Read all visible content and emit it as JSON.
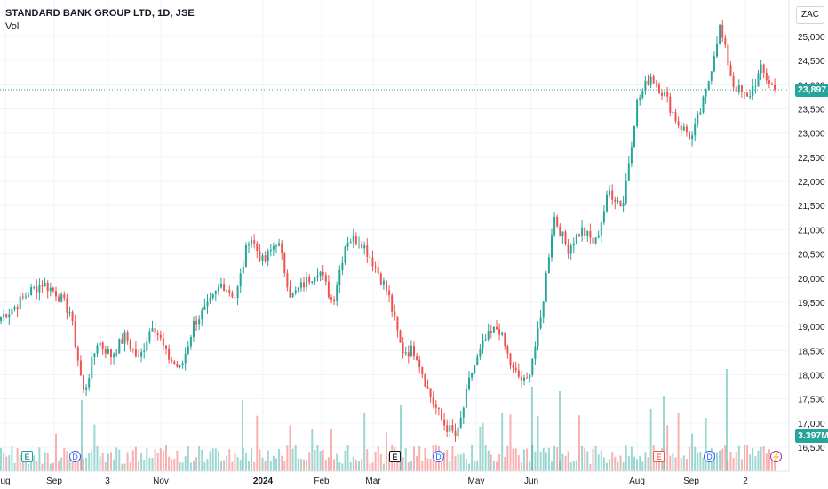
{
  "header": {
    "title": "STANDARD BANK GROUP LTD, 1D, JSE",
    "volume_label": "Vol"
  },
  "scale_label": "ZAC",
  "last_price": {
    "label": "23,897",
    "value": 23897,
    "color": "#26a69a"
  },
  "last_volume": {
    "label": "3.397M",
    "color": "#26a69a"
  },
  "colors": {
    "up": "#26a69a",
    "down": "#ef5350",
    "grid": "#f0f3fa",
    "axis_text": "#131722"
  },
  "chart_data": {
    "type": "candlestick",
    "title": "STANDARD BANK GROUP LTD, 1D, JSE",
    "ylabel": "ZAC",
    "ylim": [
      16000,
      25300
    ],
    "y_ticks": [
      "16,500",
      "17,000",
      "17,500",
      "18,000",
      "18,500",
      "19,000",
      "19,500",
      "20,000",
      "20,500",
      "21,000",
      "21,500",
      "22,000",
      "22,500",
      "23,000",
      "23,500",
      "24,000",
      "24,500",
      "25,000"
    ],
    "x_ticks": [
      "ug",
      "Sep",
      "3",
      "Nov",
      "2024",
      "Feb",
      "Mar",
      "May",
      "Jun",
      "Aug",
      "Sep",
      "2"
    ],
    "series": [
      {
        "type": "close-path",
        "points": [
          [
            "Aug",
            19200
          ],
          [
            "Aug",
            19400
          ],
          [
            "Aug",
            19700
          ],
          [
            "Aug",
            19900
          ],
          [
            "Sep",
            19700
          ],
          [
            "Sep",
            19300
          ],
          [
            "Sep",
            17600
          ],
          [
            "Sep",
            18700
          ],
          [
            "Oct",
            18400
          ],
          [
            "Oct",
            18800
          ],
          [
            "Oct",
            18300
          ],
          [
            "Oct",
            19100
          ],
          [
            "Nov",
            18400
          ],
          [
            "Nov",
            18100
          ],
          [
            "Nov",
            19100
          ],
          [
            "Nov",
            19400
          ],
          [
            "Dec",
            19900
          ],
          [
            "Dec",
            19600
          ],
          [
            "Dec",
            20900
          ],
          [
            "Dec",
            20300
          ],
          [
            "Jan",
            20800
          ],
          [
            "Jan",
            19600
          ],
          [
            "Jan",
            19900
          ],
          [
            "Feb",
            20200
          ],
          [
            "Feb",
            19500
          ],
          [
            "Feb",
            20800
          ],
          [
            "Mar",
            20800
          ],
          [
            "Mar",
            20300
          ],
          [
            "Mar",
            19700
          ],
          [
            "Mar",
            18500
          ],
          [
            "Apr",
            18500
          ],
          [
            "Apr",
            17600
          ],
          [
            "Apr",
            17000
          ],
          [
            "Apr",
            16700
          ],
          [
            "May",
            18000
          ],
          [
            "May",
            18700
          ],
          [
            "May",
            19000
          ],
          [
            "May",
            18100
          ],
          [
            "Jun",
            17800
          ],
          [
            "Jun",
            19000
          ],
          [
            "Jun",
            21300
          ],
          [
            "Jun",
            20600
          ],
          [
            "Jul",
            21000
          ],
          [
            "Jul",
            20700
          ],
          [
            "Jul",
            21800
          ],
          [
            "Jul",
            21500
          ],
          [
            "Aug",
            23600
          ],
          [
            "Aug",
            24200
          ],
          [
            "Aug",
            23800
          ],
          [
            "Sep",
            23200
          ],
          [
            "Sep",
            22900
          ],
          [
            "Sep",
            23800
          ],
          [
            "Sep",
            25200
          ],
          [
            "Oct",
            24000
          ],
          [
            "Oct",
            23700
          ],
          [
            "Oct",
            24300
          ],
          [
            "Oct",
            23897
          ]
        ]
      }
    ],
    "volume": {
      "last_value_millions": 3.397,
      "spikes_millions": [
        11.6,
        5.1,
        9.0
      ]
    },
    "events": [
      {
        "type": "earnings",
        "label": "E",
        "month": "Aug"
      },
      {
        "type": "dividend",
        "label": "D",
        "month": "Sep"
      },
      {
        "type": "earnings",
        "label": "E",
        "month": "Mar"
      },
      {
        "type": "dividend",
        "label": "D",
        "month": "Apr"
      },
      {
        "type": "earnings",
        "label": "E",
        "month": "Aug"
      },
      {
        "type": "dividend",
        "label": "D",
        "month": "Sep"
      },
      {
        "type": "split",
        "label": "⚡",
        "month": "Oct"
      }
    ]
  }
}
